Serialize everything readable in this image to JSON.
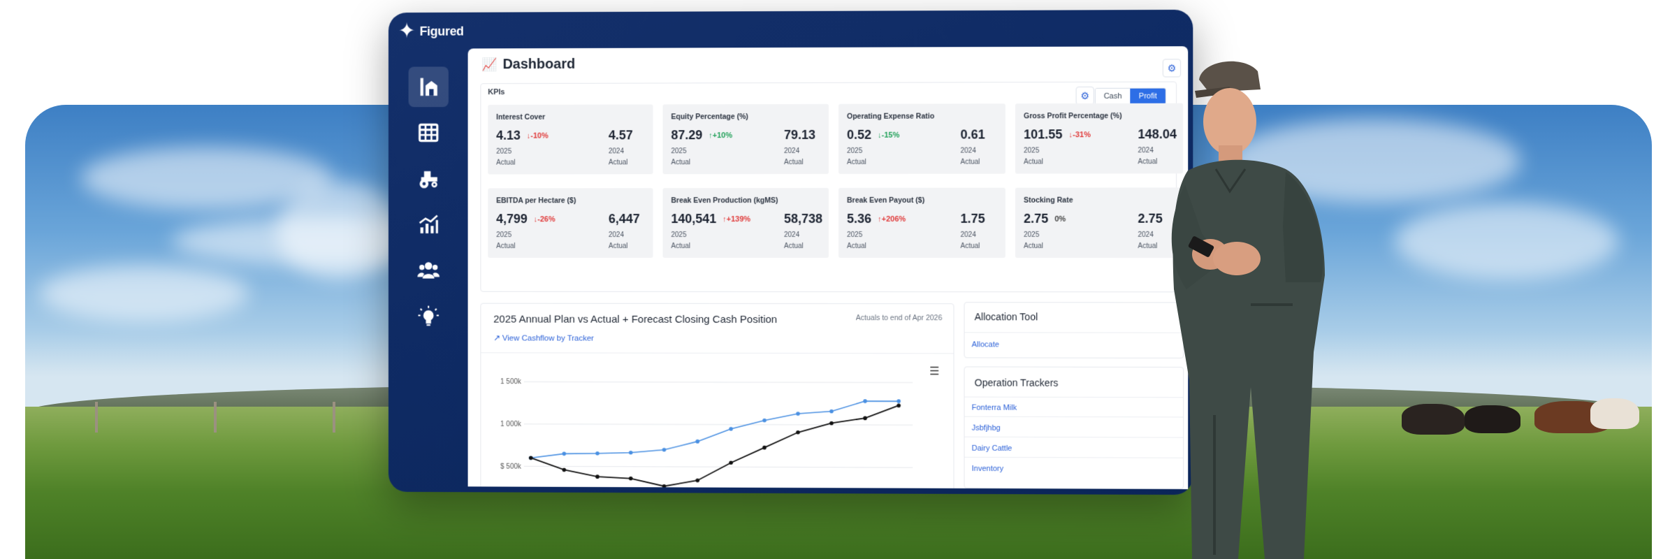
{
  "brand": {
    "name": "Figured"
  },
  "dashboard": {
    "title": "Dashboard"
  },
  "kpis": {
    "label": "KPIs",
    "toggle": [
      "Cash",
      "Profit"
    ],
    "active_toggle": "Profit",
    "cards": [
      {
        "name": "Interest Cover",
        "value": "4.13",
        "change": "-10%",
        "direction": "down",
        "year": "2025",
        "basis": "Actual",
        "prev_value": "4.57",
        "prev_year": "2024",
        "prev_basis": "Actual"
      },
      {
        "name": "Equity Percentage (%)",
        "value": "87.29",
        "change": "+10%",
        "direction": "up",
        "year": "2025",
        "basis": "Actual",
        "prev_value": "79.13",
        "prev_year": "2024",
        "prev_basis": "Actual"
      },
      {
        "name": "Operating Expense Ratio",
        "value": "0.52",
        "change": "-15%",
        "direction": "down-good",
        "year": "2025",
        "basis": "Actual",
        "prev_value": "0.61",
        "prev_year": "2024",
        "prev_basis": "Actual"
      },
      {
        "name": "Gross Profit Percentage (%)",
        "value": "101.55",
        "change": "-31%",
        "direction": "down",
        "year": "2025",
        "basis": "Actual",
        "prev_value": "148.04",
        "prev_year": "2024",
        "prev_basis": "Actual"
      },
      {
        "name": "EBITDA per Hectare ($)",
        "value": "4,799",
        "change": "-26%",
        "direction": "down",
        "year": "2025",
        "basis": "Actual",
        "prev_value": "6,447",
        "prev_year": "2024",
        "prev_basis": "Actual"
      },
      {
        "name": "Break Even Production (kgMS)",
        "value": "140,541",
        "change": "+139%",
        "direction": "up-bad",
        "year": "2025",
        "basis": "Actual",
        "prev_value": "58,738",
        "prev_year": "2024",
        "prev_basis": "Actual"
      },
      {
        "name": "Break Even Payout ($)",
        "value": "5.36",
        "change": "+206%",
        "direction": "up-bad",
        "year": "2025",
        "basis": "Actual",
        "prev_value": "1.75",
        "prev_year": "2024",
        "prev_basis": "Actual"
      },
      {
        "name": "Stocking Rate",
        "value": "2.75",
        "change": "0%",
        "direction": "flat",
        "year": "2025",
        "basis": "Actual",
        "prev_value": "2.75",
        "prev_year": "2024",
        "prev_basis": "Actual"
      }
    ]
  },
  "cash_chart": {
    "title": "2025 Annual Plan vs Actual + Forecast Closing Cash Position",
    "note": "Actuals to end of Apr 2026",
    "link": "View Cashflow by Tracker",
    "colors": {
      "plan": "#4a90e2",
      "actual": "#111111"
    }
  },
  "chart_data": {
    "type": "line",
    "x": [
      1,
      2,
      3,
      4,
      5,
      6,
      7,
      8,
      9,
      10,
      11,
      12
    ],
    "series": [
      {
        "values": [
          600000,
          650000,
          655000,
          665000,
          700000,
          800000,
          950000,
          1050000,
          1130000,
          1160000,
          1280000,
          1280000
        ]
      },
      {
        "values": [
          600000,
          460000,
          380000,
          360000,
          270000,
          340000,
          550000,
          730000,
          910000,
          1020000,
          1080000,
          1230000
        ]
      }
    ],
    "ytick_labels": [
      "$  500k",
      "1 000k",
      "1 500k"
    ],
    "ytick_values": [
      500000,
      1000000,
      1500000
    ],
    "ylim": [
      200000,
      1600000
    ],
    "grid": true
  },
  "allocation": {
    "title": "Allocation Tool",
    "link": "Allocate"
  },
  "trackers": {
    "title": "Operation Trackers",
    "items": [
      "Fonterra Milk",
      "Jsbfjhbg",
      "Dairy Cattle",
      "Inventory"
    ]
  }
}
